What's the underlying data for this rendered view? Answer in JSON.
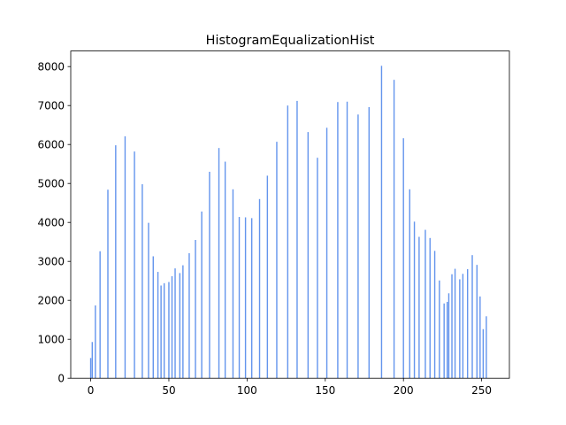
{
  "chart_data": {
    "type": "bar",
    "title": "HistogramEqualizationHist",
    "xlabel": "",
    "ylabel": "",
    "xlim": [
      -12.75,
      267.75
    ],
    "ylim": [
      0,
      8400
    ],
    "x_ticks": [
      0,
      50,
      100,
      150,
      200,
      250
    ],
    "y_ticks": [
      0,
      1000,
      2000,
      3000,
      4000,
      5000,
      6000,
      7000,
      8000
    ],
    "bar_color": "#6495ED",
    "grid": false,
    "series": [
      {
        "x": [
          0,
          1,
          3,
          6,
          11,
          16,
          22,
          28,
          33,
          37,
          40,
          43,
          45,
          47,
          50,
          52,
          54,
          57,
          59,
          63,
          67,
          71,
          76,
          82,
          86,
          91,
          95,
          99,
          103,
          108,
          113,
          119,
          126,
          132,
          139,
          145,
          151,
          158,
          164,
          171,
          178,
          186,
          194,
          200,
          204,
          207,
          210,
          214,
          217,
          220,
          223,
          226,
          228,
          229,
          231,
          233,
          236,
          238,
          241,
          244,
          247,
          249,
          251,
          253,
          254
        ],
        "values": [
          520,
          930,
          1870,
          3260,
          4840,
          5980,
          6210,
          5820,
          4980,
          3990,
          3130,
          2730,
          2380,
          2440,
          2470,
          2620,
          2820,
          2700,
          2900,
          3210,
          3550,
          4280,
          5300,
          5910,
          5560,
          4850,
          4140,
          4130,
          4110,
          4600,
          5200,
          6070,
          7000,
          7120,
          6320,
          5660,
          6430,
          7090,
          7100,
          6770,
          6960,
          8020,
          7660,
          6160,
          4850,
          4020,
          3630,
          3810,
          3600,
          3270,
          2510,
          1920,
          1960,
          2180,
          2670,
          2810,
          2540,
          2680,
          2800,
          3160,
          2910,
          2100,
          1260,
          1590,
          0
        ]
      }
    ]
  }
}
